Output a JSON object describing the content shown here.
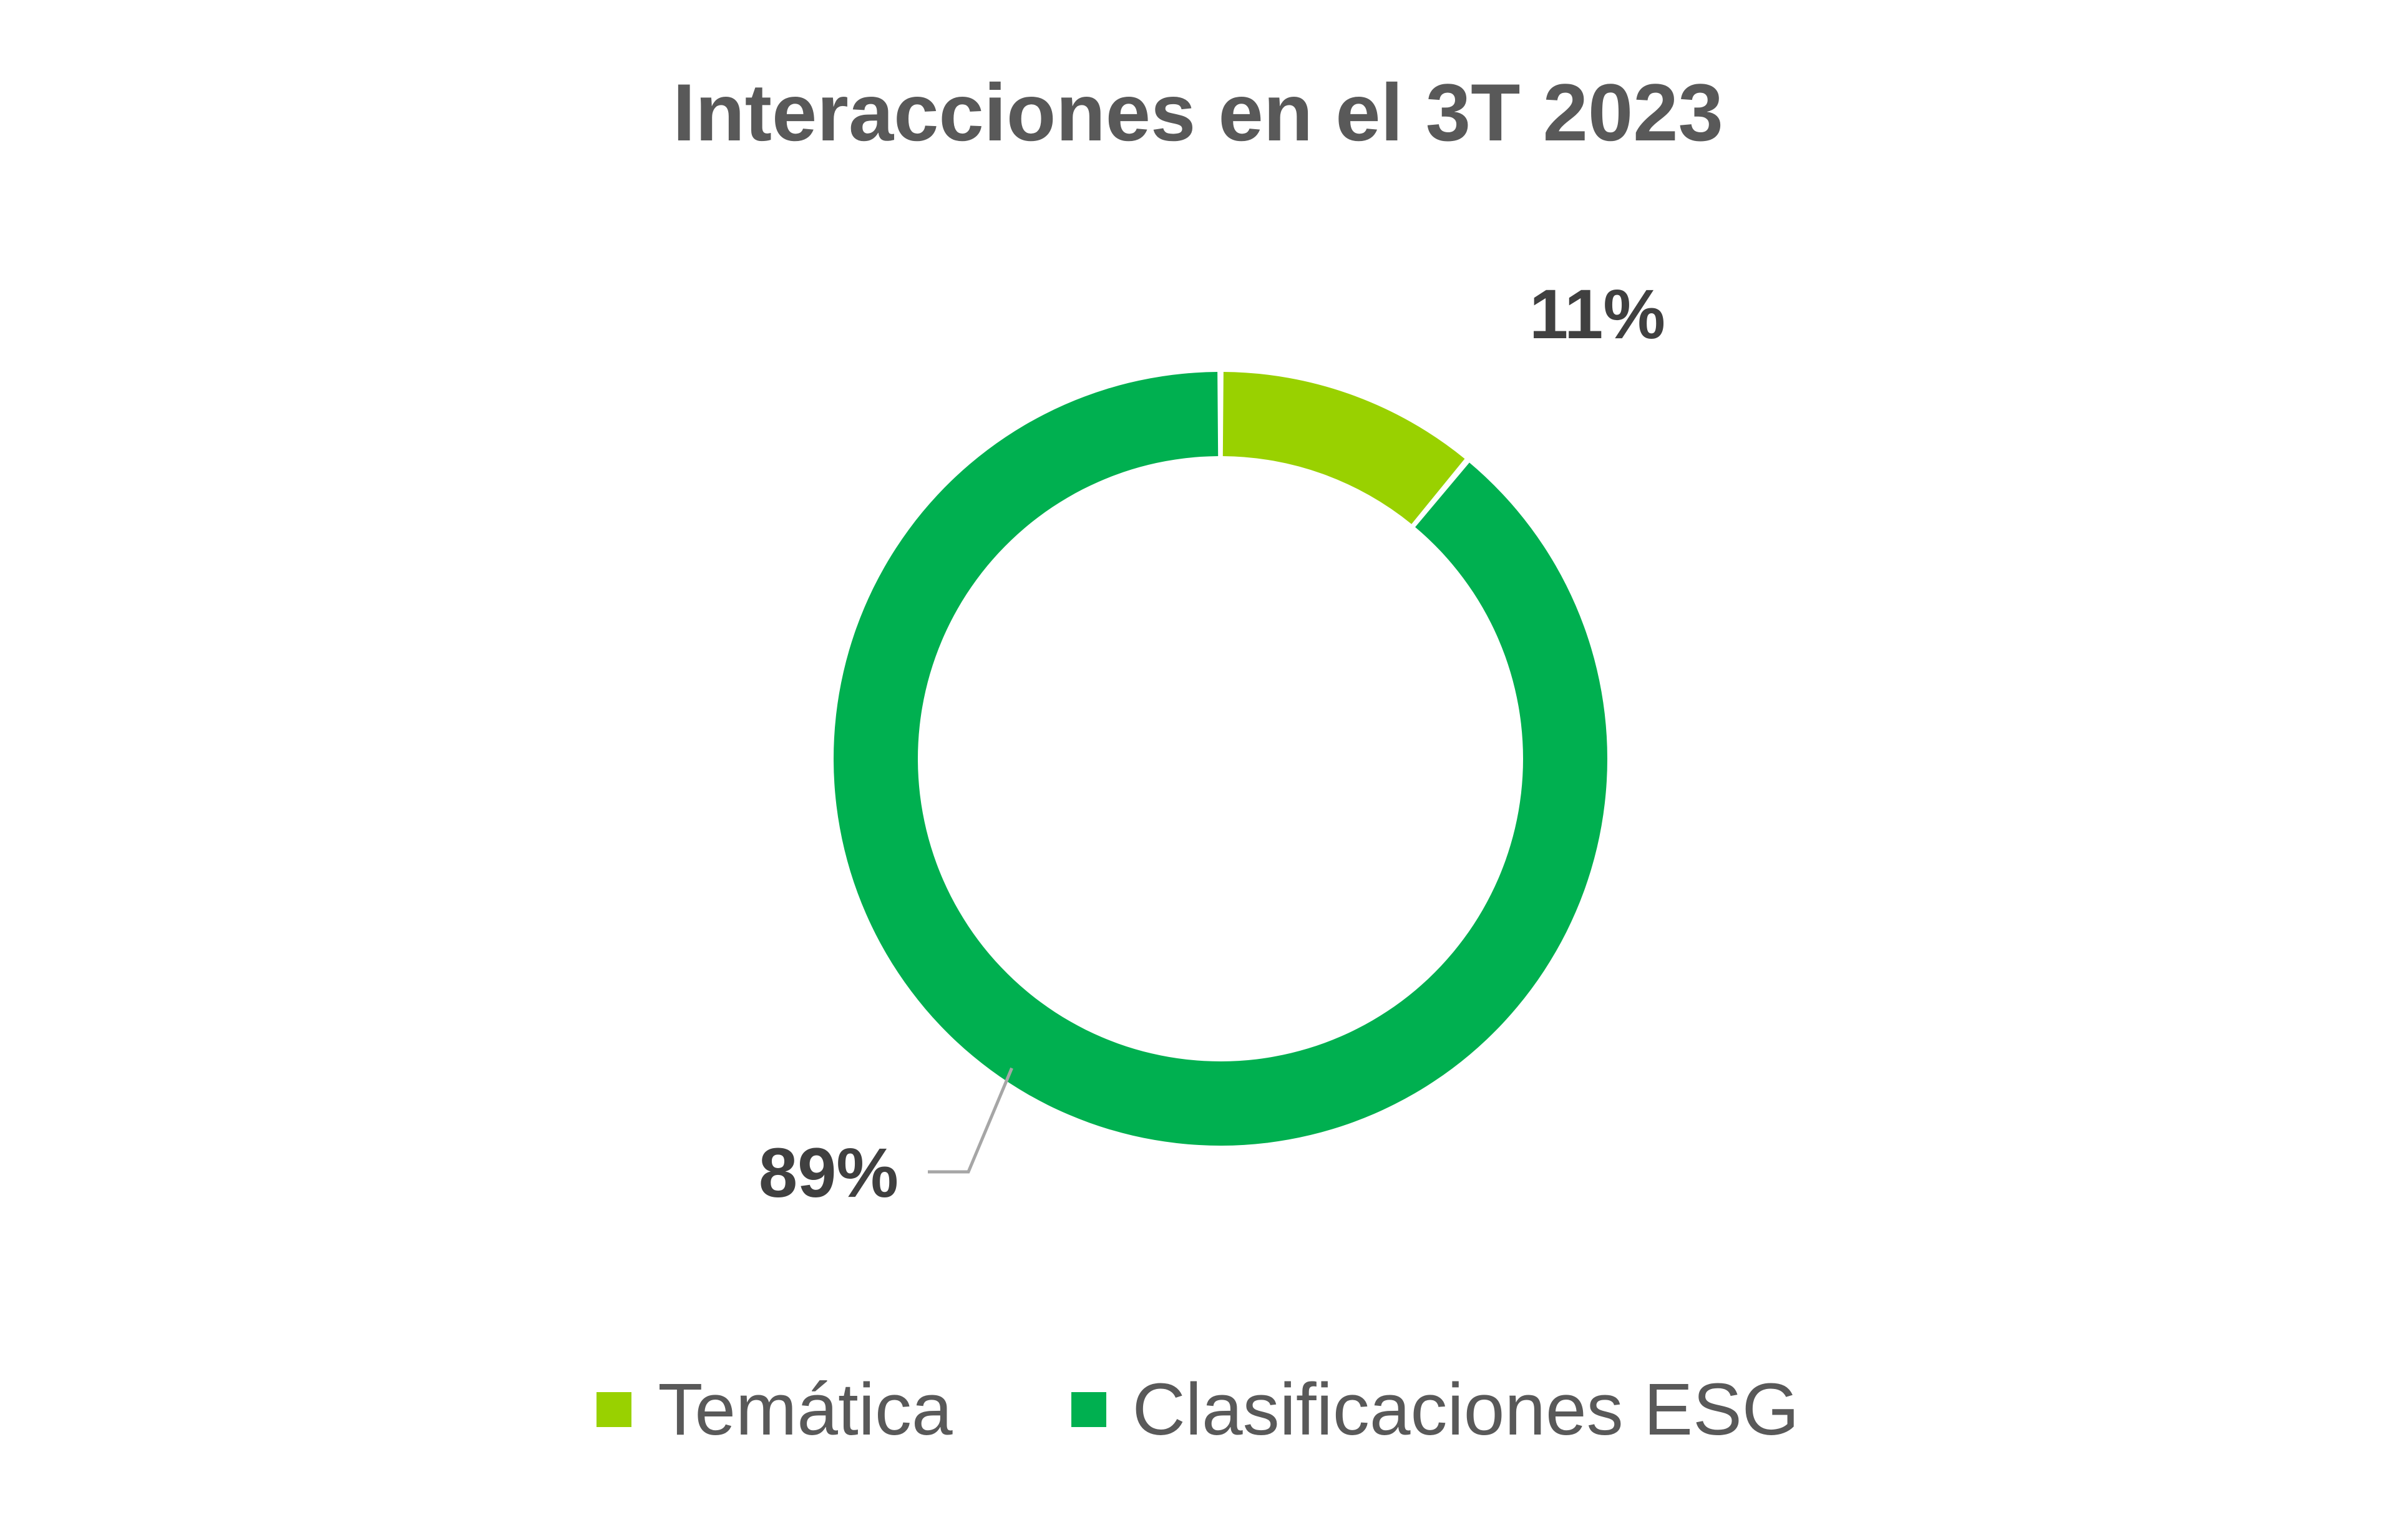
{
  "chart_data": {
    "type": "pie",
    "title": "Interacciones en el 3T 2023",
    "categories": [
      "Temática",
      "Clasificaciones ESG"
    ],
    "values": [
      11,
      89
    ],
    "data_labels": [
      "11%",
      "89%"
    ],
    "colors": [
      "#99D100",
      "#00B050"
    ],
    "donut": true,
    "legend_position": "bottom",
    "label_color": "#404040",
    "leader_line_color": "#A6A6A6"
  }
}
